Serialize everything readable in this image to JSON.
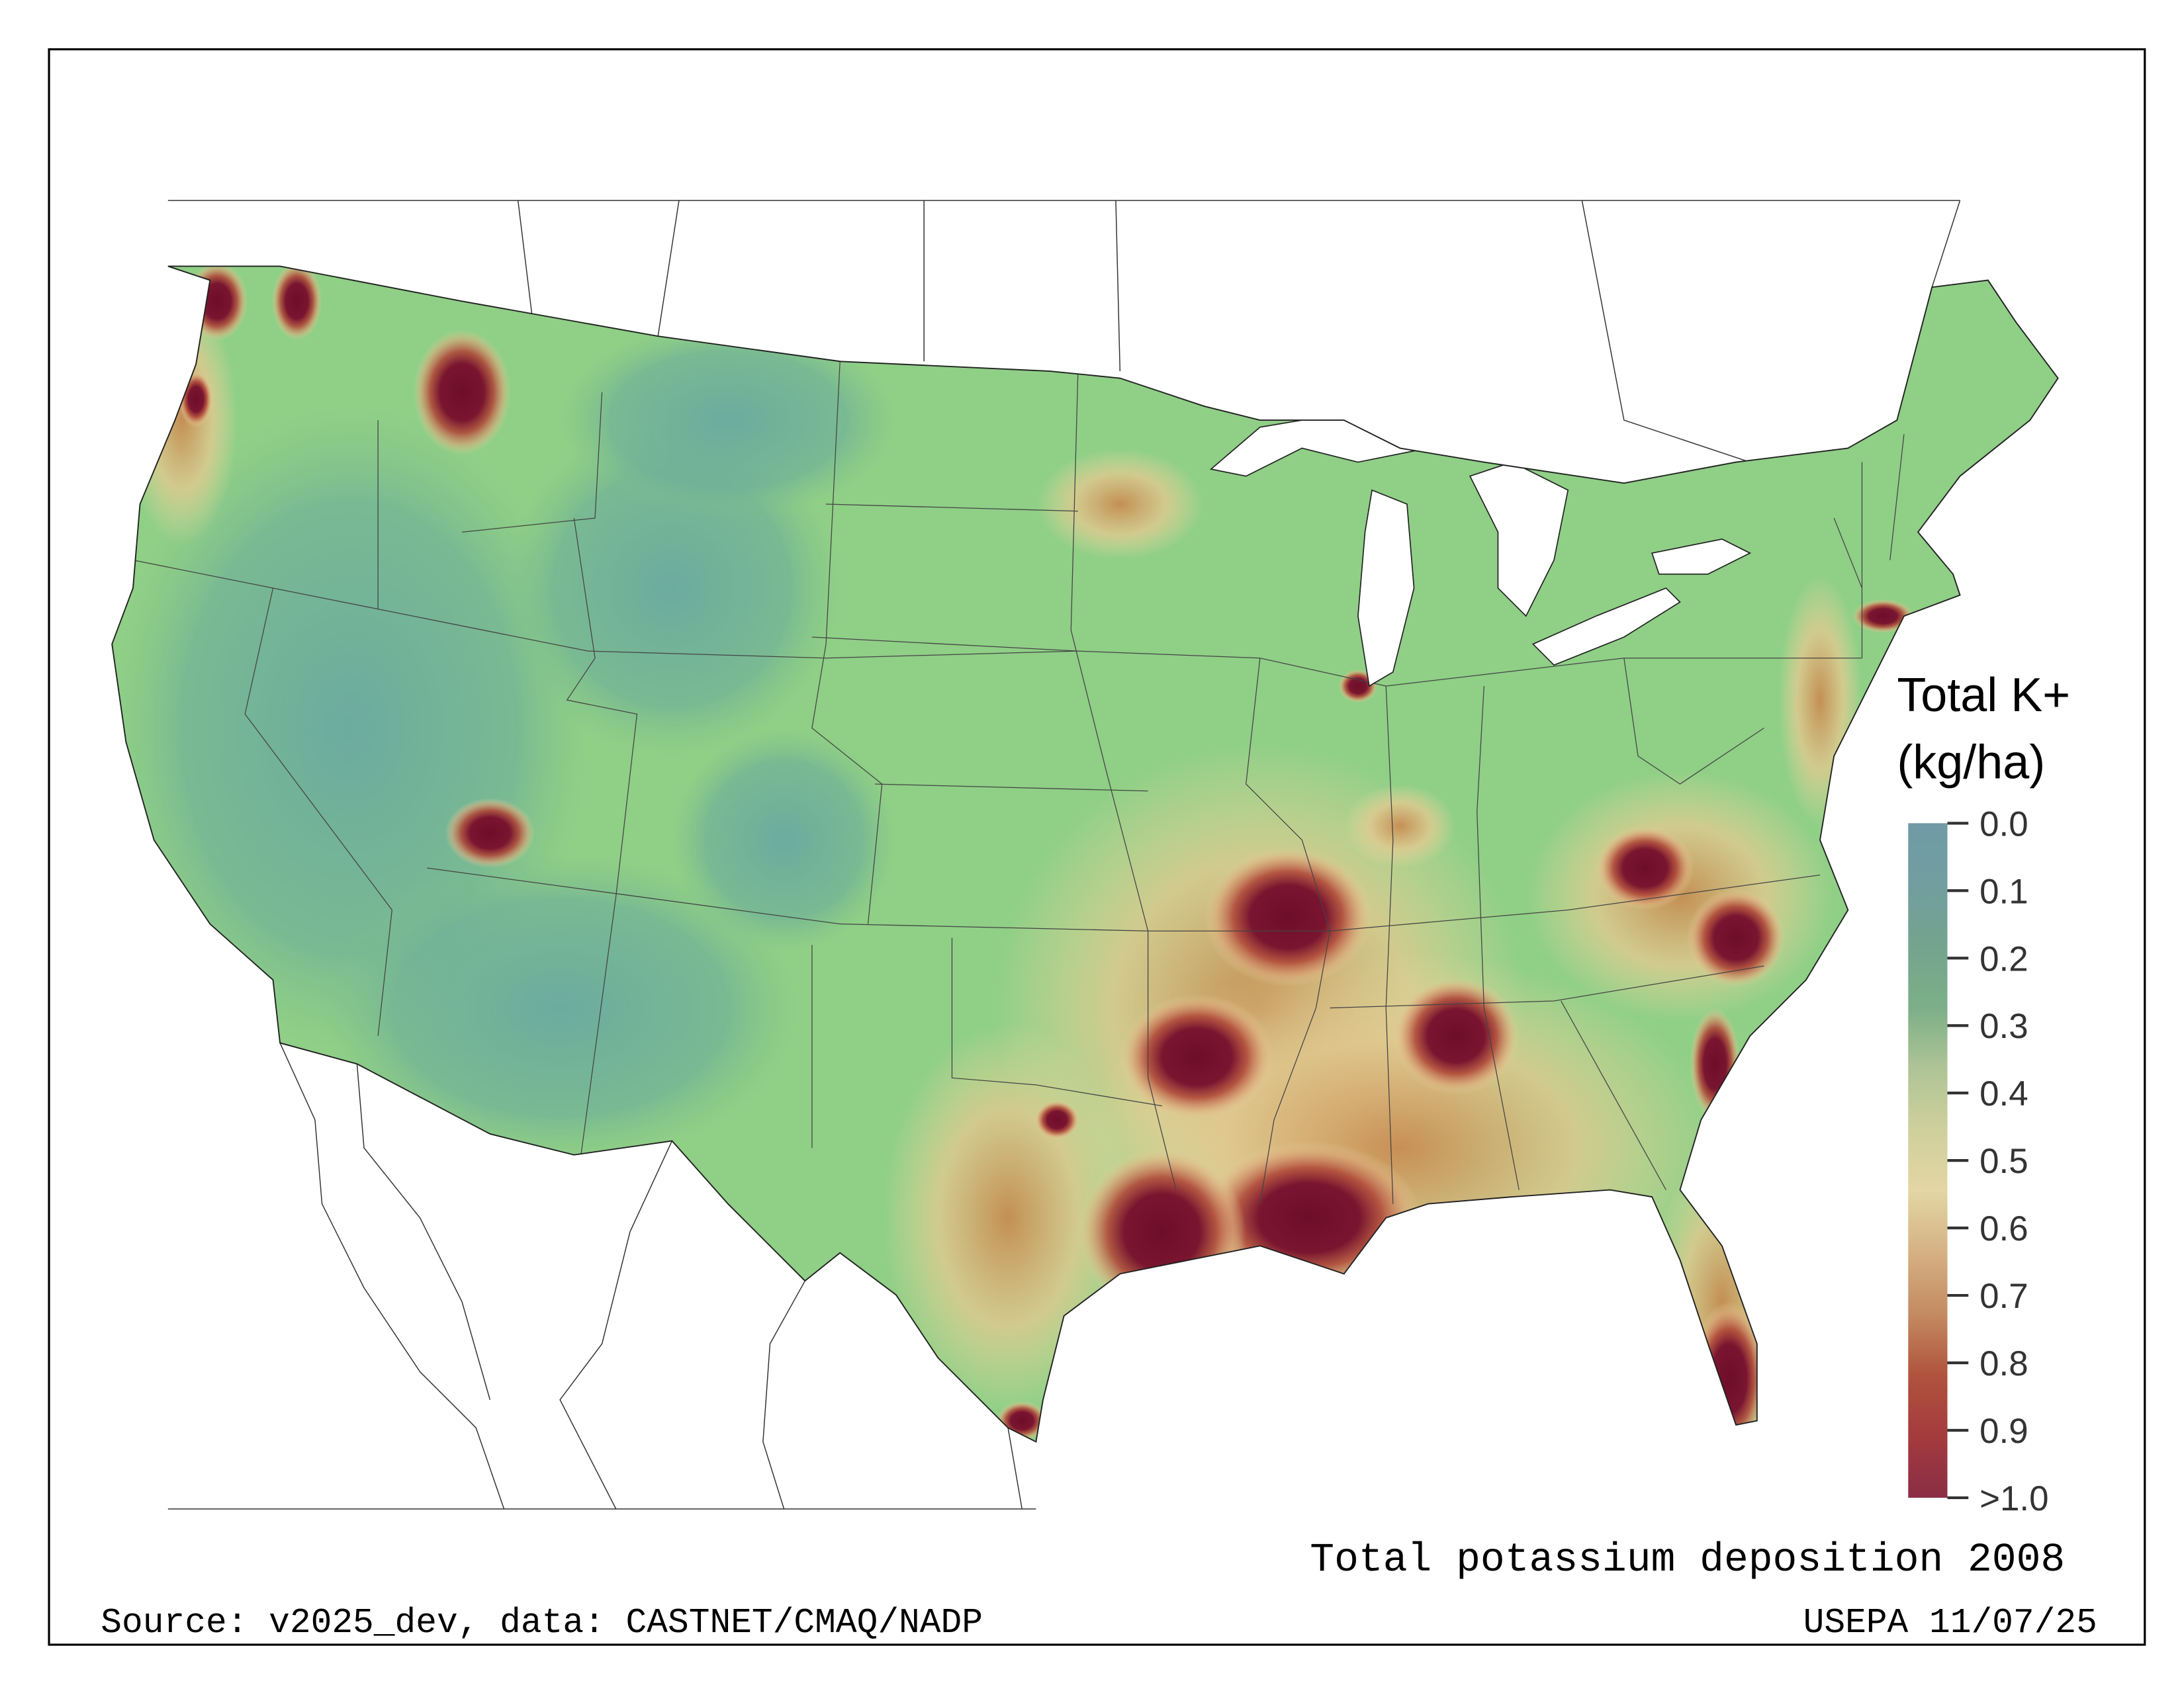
{
  "title": "Total potassium deposition 2008",
  "source": "Source: v2025_dev, data: CASTNET/CMAQ/NADP",
  "credit": "USEPA 11/07/25",
  "legend": {
    "title_line1": "Total K+",
    "title_line2": "(kg/ha)",
    "ticks": [
      "0.0",
      "0.1",
      "0.2",
      "0.3",
      "0.4",
      "0.5",
      "0.6",
      "0.7",
      "0.8",
      "0.9",
      ">1.0"
    ],
    "colors": [
      "#6f9aa6",
      "#729ea0",
      "#74a48e",
      "#7caf88",
      "#aec496",
      "#cfd09c",
      "#e3d6a4",
      "#d5b184",
      "#c48b62",
      "#b0533d",
      "#a43b3d",
      "#8a2d45"
    ]
  },
  "map": {
    "base_color": "#8fcf86",
    "west_color": "#6db09c",
    "hotspot_color": "#6e0d2a",
    "halo_color": "#c06a45"
  }
}
